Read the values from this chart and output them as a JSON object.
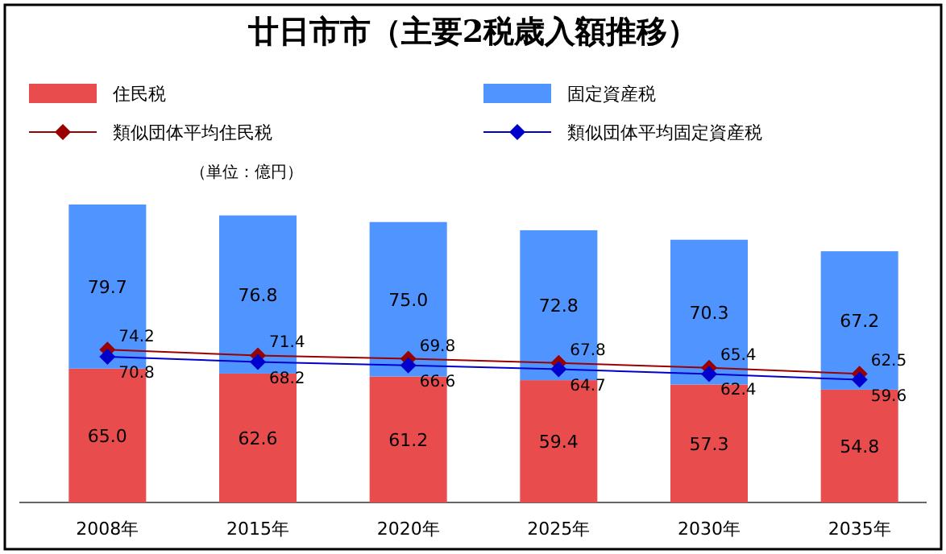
{
  "chart_data": {
    "type": "bar",
    "title": "廿日市市（主要2税歳入額推移）",
    "categories": [
      "2008年",
      "2015年",
      "2020年",
      "2025年",
      "2030年",
      "2035年"
    ],
    "stacked": true,
    "legend": "top",
    "marker": "diamond",
    "annotations": [
      "（単位：億円）"
    ],
    "series": [
      {
        "name": "住民税",
        "color": "#e84c4c",
        "values": [
          65.0,
          62.6,
          61.2,
          59.4,
          57.3,
          54.8
        ],
        "value_labels": [
          "65.0",
          "62.6",
          "61.2",
          "59.4",
          "57.3",
          "54.8"
        ]
      },
      {
        "name": "固定資産税",
        "color": "#4f94ff",
        "values": [
          79.7,
          76.8,
          75.0,
          72.8,
          70.3,
          67.2
        ],
        "value_labels": [
          "79.7",
          "76.8",
          "75.0",
          "72.8",
          "70.3",
          "67.2"
        ]
      },
      {
        "name": "類似団体平均住民税",
        "type": "line",
        "color": "#990000",
        "values": [
          74.2,
          71.4,
          69.8,
          67.8,
          65.4,
          62.5
        ],
        "value_labels": [
          "74.2",
          "71.4",
          "69.8",
          "67.8",
          "65.4",
          "62.5"
        ]
      },
      {
        "name": "類似団体平均固定資産税",
        "type": "line",
        "color": "#0000cc",
        "values": [
          70.8,
          68.2,
          66.6,
          64.7,
          62.4,
          59.6
        ],
        "value_labels": [
          "70.8",
          "68.2",
          "66.6",
          "64.7",
          "62.4",
          "59.6"
        ]
      }
    ]
  }
}
